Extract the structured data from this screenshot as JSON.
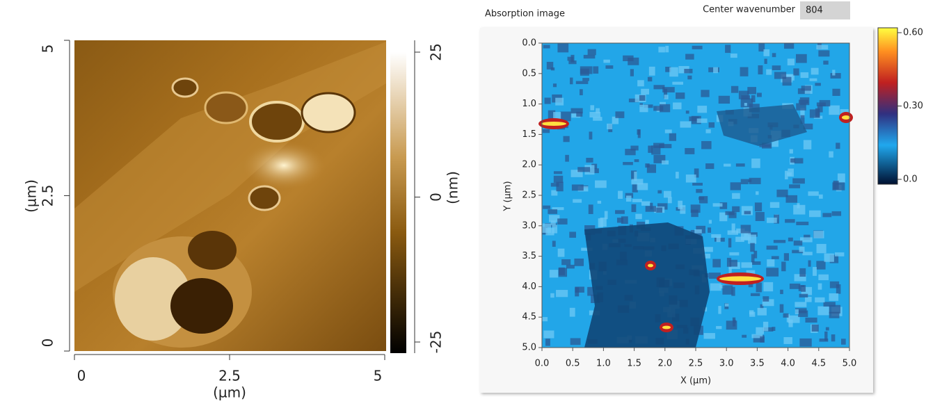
{
  "chart_data": [
    {
      "type": "image",
      "xlim": [
        0,
        5
      ],
      "ylim": [
        0,
        5
      ],
      "xticks": [
        0,
        2.5,
        5
      ],
      "yticks": [
        0,
        2.5,
        5
      ],
      "xlabel": "(µm)",
      "ylabel": "(µm)",
      "colorbar": {
        "lim": [
          -25,
          25
        ],
        "ticks": [
          -25,
          0,
          25
        ],
        "label": "(nm)"
      }
    },
    {
      "type": "image",
      "title": "Absorption image",
      "center_wavenumber": {
        "label": "Center wavenumber",
        "value": 804
      },
      "xlim": [
        0,
        5
      ],
      "ylim": [
        5,
        0
      ],
      "xticks": [
        {
          "value": 0,
          "label": "0.0"
        },
        {
          "value": 0.5,
          "label": "0.5"
        },
        {
          "value": 1,
          "label": "1.0"
        },
        {
          "value": 1.5,
          "label": "1.5"
        },
        {
          "value": 2,
          "label": "2.0"
        },
        {
          "value": 2.5,
          "label": "2.5"
        },
        {
          "value": 3,
          "label": "3.0"
        },
        {
          "value": 3.5,
          "label": "3.5"
        },
        {
          "value": 4,
          "label": "4.0"
        },
        {
          "value": 4.5,
          "label": "4.5"
        },
        {
          "value": 5,
          "label": "5.0"
        }
      ],
      "yticks": [
        {
          "value": 0,
          "label": "0.0"
        },
        {
          "value": 0.5,
          "label": "0.5"
        },
        {
          "value": 1,
          "label": "1.0"
        },
        {
          "value": 1.5,
          "label": "1.5"
        },
        {
          "value": 2,
          "label": "2.0"
        },
        {
          "value": 2.5,
          "label": "2.5"
        },
        {
          "value": 3,
          "label": "3.0"
        },
        {
          "value": 3.5,
          "label": "3.5"
        },
        {
          "value": 4,
          "label": "4.0"
        },
        {
          "value": 4.5,
          "label": "4.5"
        },
        {
          "value": 5,
          "label": "5.0"
        }
      ],
      "xlabel": "X (µm)",
      "ylabel": "Y (µm)",
      "colorbar": {
        "lim": [
          0,
          0.6
        ],
        "ticks": [
          {
            "value": 0,
            "label": "0.0"
          },
          {
            "value": 0.3,
            "label": "0.30"
          },
          {
            "value": 0.6,
            "label": "0.60"
          }
        ]
      }
    }
  ]
}
